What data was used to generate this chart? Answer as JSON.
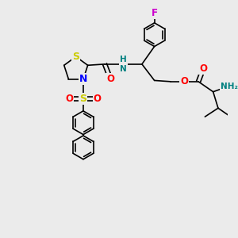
{
  "bg_color": "#ebebeb",
  "bond_color": "#000000",
  "bond_width": 1.2,
  "atom_colors": {
    "S_ring": "#cccc00",
    "S_sulf": "#cccc00",
    "N": "#0000ff",
    "O": "#ff0000",
    "F": "#cc00cc",
    "NH": "#008080",
    "NH2": "#008080"
  },
  "figsize": [
    3.0,
    3.0
  ],
  "dpi": 100,
  "xlim": [
    0,
    10
  ],
  "ylim": [
    0,
    10
  ]
}
